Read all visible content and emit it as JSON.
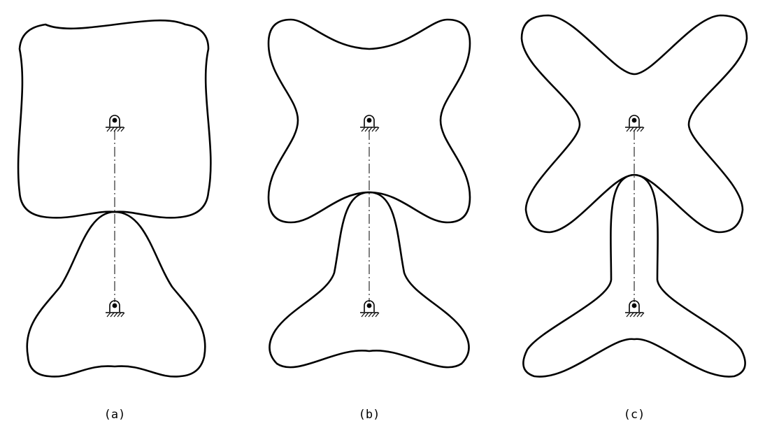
{
  "panels": [
    {
      "id": "a",
      "label": "(a)"
    },
    {
      "id": "b",
      "label": "(b)"
    },
    {
      "id": "c",
      "label": "(c)"
    }
  ]
}
